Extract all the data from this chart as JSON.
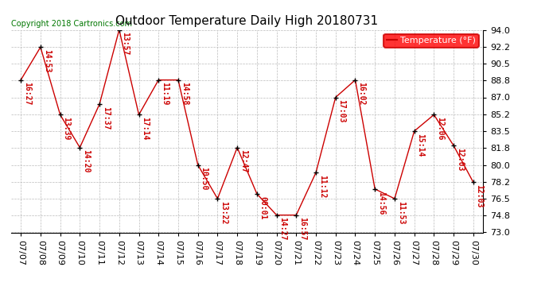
{
  "title": "Outdoor Temperature Daily High 20180731",
  "copyright_text": "Copyright 2018 Cartronics.com",
  "legend_label": "Temperature (°F)",
  "dates": [
    "07/07",
    "07/08",
    "07/09",
    "07/10",
    "07/11",
    "07/12",
    "07/13",
    "07/14",
    "07/15",
    "07/16",
    "07/17",
    "07/18",
    "07/19",
    "07/20",
    "07/21",
    "07/22",
    "07/23",
    "07/24",
    "07/25",
    "07/26",
    "07/27",
    "07/28",
    "07/29",
    "07/30"
  ],
  "temps": [
    88.8,
    92.2,
    85.2,
    81.8,
    86.3,
    94.0,
    85.2,
    88.8,
    88.8,
    80.0,
    76.5,
    81.8,
    77.0,
    74.8,
    74.8,
    79.2,
    87.0,
    88.8,
    77.5,
    76.5,
    83.5,
    85.2,
    82.0,
    78.2
  ],
  "times": [
    "16:27",
    "14:53",
    "13:39",
    "14:20",
    "17:37",
    "13:57",
    "17:14",
    "11:19",
    "14:58",
    "10:50",
    "13:22",
    "12:47",
    "00:01",
    "14:27",
    "16:57",
    "11:12",
    "17:03",
    "16:02",
    "14:56",
    "11:53",
    "15:14",
    "12:06",
    "12:03",
    "12:03"
  ],
  "ylim": [
    73.0,
    94.0
  ],
  "yticks": [
    73.0,
    74.8,
    76.5,
    78.2,
    80.0,
    81.8,
    83.5,
    85.2,
    87.0,
    88.8,
    90.5,
    92.2,
    94.0
  ],
  "line_color": "#cc0000",
  "marker_color": "#000000",
  "label_color": "#cc0000",
  "bg_color": "#ffffff",
  "grid_color": "#bbbbbb",
  "title_fontsize": 11,
  "label_fontsize": 7,
  "tick_fontsize": 8,
  "copyright_fontsize": 7,
  "legend_fontsize": 8
}
